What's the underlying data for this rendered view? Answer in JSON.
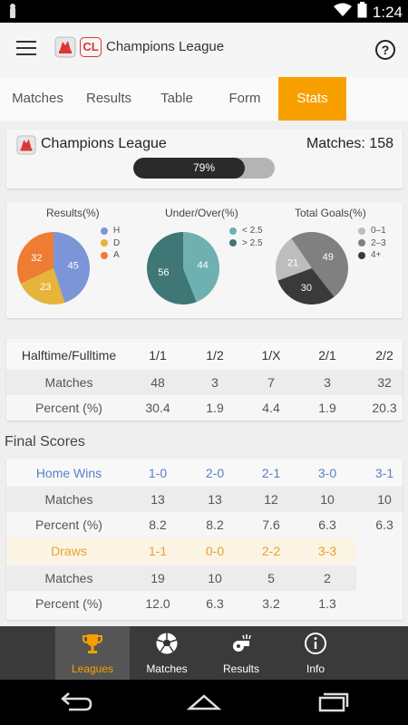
{
  "status_bar": {
    "time": "1:24"
  },
  "app_bar": {
    "badge": "CL",
    "title": "Champions League",
    "help_label": "?"
  },
  "tabs": [
    {
      "label": "Matches"
    },
    {
      "label": "Results"
    },
    {
      "label": "Table"
    },
    {
      "label": "Form"
    },
    {
      "label": "Stats",
      "active": true
    }
  ],
  "summary": {
    "title": "Champions League",
    "matches_label": "Matches: 158",
    "progress_text": "79%",
    "progress_value": 0.79
  },
  "pies": [
    {
      "title": "Results(%)",
      "slices": [
        {
          "label": "H",
          "value": 45,
          "color": "#7b95d6"
        },
        {
          "label": "D",
          "value": 23,
          "color": "#e6b33b"
        },
        {
          "label": "A",
          "value": 32,
          "color": "#ef7c33"
        }
      ]
    },
    {
      "title": "Under/Over(%)",
      "slices": [
        {
          "label": "< 2.5",
          "value": 44,
          "color": "#6fb1b1"
        },
        {
          "label": "> 2.5",
          "value": 56,
          "color": "#3f7676"
        }
      ]
    },
    {
      "title": "Total Goals(%)",
      "slices": [
        {
          "label": "0–1",
          "value": 21,
          "color": "#bdbdbd"
        },
        {
          "label": "2–3",
          "value": 49,
          "color": "#808080"
        },
        {
          "label": "4+",
          "value": 30,
          "color": "#3a3a3a"
        }
      ]
    }
  ],
  "htft": {
    "header": "Halftime/Fulltime",
    "columns": [
      "1/1",
      "1/2",
      "1/X",
      "2/1",
      "2/2"
    ],
    "rows": [
      {
        "label": "Matches",
        "values": [
          "48",
          "3",
          "7",
          "3",
          "32"
        ]
      },
      {
        "label": "Percent (%)",
        "values": [
          "30.4",
          "1.9",
          "4.4",
          "1.9",
          "20.3"
        ]
      }
    ]
  },
  "final_scores": {
    "title": "Final Scores",
    "home_wins": {
      "label": "Home Wins",
      "columns": [
        "1-0",
        "2-0",
        "2-1",
        "3-0",
        "3-1"
      ],
      "matches": [
        "13",
        "13",
        "12",
        "10",
        "10"
      ],
      "percent": [
        "8.2",
        "8.2",
        "7.6",
        "6.3",
        "6.3"
      ]
    },
    "draws": {
      "label": "Draws",
      "columns": [
        "1-1",
        "0-0",
        "2-2",
        "3-3"
      ],
      "matches": [
        "19",
        "10",
        "5",
        "2"
      ],
      "percent": [
        "12.0",
        "6.3",
        "3.2",
        "1.3"
      ]
    },
    "matches_label": "Matches",
    "percent_label": "Percent (%)"
  },
  "bottom_nav": [
    {
      "label": "Leagues",
      "icon": "trophy-icon",
      "active": true
    },
    {
      "label": "Matches",
      "icon": "soccer-ball-icon"
    },
    {
      "label": "Results",
      "icon": "whistle-icon"
    },
    {
      "label": "Info",
      "icon": "info-icon"
    }
  ],
  "colors": {
    "accent": "#f7a000",
    "home": "#5b7fc8",
    "draw": "#e8a22a"
  }
}
